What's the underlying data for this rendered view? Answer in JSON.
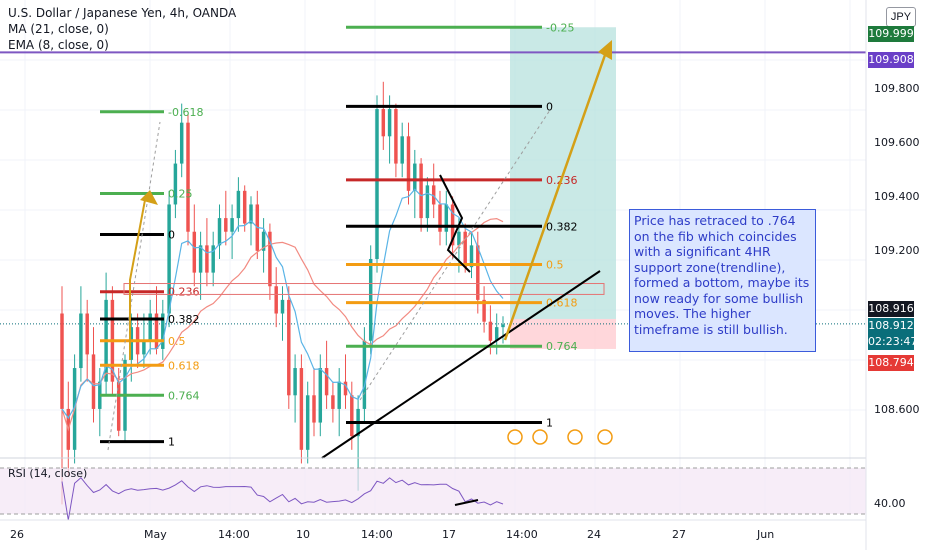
{
  "header": {
    "title": "U.S. Dollar / Japanese Yen, 4h, OANDA",
    "ma": "MA (21, close, 0)",
    "ema": "EMA (8, close, 0)",
    "currency": "JPY"
  },
  "rsi": {
    "label": "RSI (14, close)",
    "value_label": "40.00"
  },
  "note": "Price has retraced to .764 on the fib which coincides with a significant 4HR support zone(trendline), formed a bottom, maybe its now ready for some bullish moves. The higher timeframe is still bullish.",
  "price_tags": [
    {
      "text": "109.999",
      "color": "#1e7a3c"
    },
    {
      "text": "109.908",
      "color": "#6a3fc7"
    },
    {
      "text": "108.916",
      "color": "#131722"
    },
    {
      "text": "108.912",
      "color": "#0a6e7a"
    },
    {
      "text": "02:23:47",
      "color": "#0a6e7a"
    },
    {
      "text": "108.794",
      "color": "#e53935"
    }
  ],
  "colors": {
    "up": "#26a69a",
    "down": "#ef5350",
    "fib_green": "#4caf50",
    "fib_orange": "#f39c12",
    "fib_red": "#c62828",
    "fib_black": "#000000",
    "ma": "#f28b82",
    "ema": "#5ab4e6",
    "purple": "#7e57c2",
    "arrow": "#d4a017",
    "target_zone": "#b2dfdb",
    "stop_zone": "#ffcdd2"
  },
  "chart_data": {
    "type": "candlestick",
    "title": "U.S. Dollar / Japanese Yen, 4h, OANDA",
    "y_axis_ticks": [
      "109.800",
      "109.600",
      "109.400",
      "109.200",
      "108.600"
    ],
    "ylim": [
      108.42,
      110.1
    ],
    "x_axis_ticks": [
      "26",
      "May",
      "14:00",
      "10",
      "14:00",
      "17",
      "14:00",
      "24",
      "27",
      "Jun"
    ],
    "horizontal_lines": [
      {
        "price": 109.908,
        "color": "purple"
      }
    ],
    "fib_left": [
      {
        "level": "-0.618",
        "price": 109.69
      },
      {
        "level": "0.25",
        "price": 109.39
      },
      {
        "level": "0",
        "price": 109.24
      },
      {
        "level": "0.236",
        "price": 109.03
      },
      {
        "level": "0.382",
        "price": 108.93
      },
      {
        "level": "0.5",
        "price": 108.85
      },
      {
        "level": "0.618",
        "price": 108.76
      },
      {
        "level": "0.764",
        "price": 108.65
      },
      {
        "level": "1",
        "price": 108.48
      }
    ],
    "fib_right": [
      {
        "level": "-0.25",
        "price": 110.0
      },
      {
        "level": "0",
        "price": 109.71
      },
      {
        "level": "0.236",
        "price": 109.44
      },
      {
        "level": "0.382",
        "price": 109.27
      },
      {
        "level": "0.5",
        "price": 109.13
      },
      {
        "level": "0.618",
        "price": 108.99
      },
      {
        "level": "0.764",
        "price": 108.83
      },
      {
        "level": "1",
        "price": 108.55
      }
    ],
    "candles": [
      [
        108.95,
        109.05,
        108.25,
        108.6
      ],
      [
        108.6,
        108.7,
        108.35,
        108.45
      ],
      [
        108.45,
        108.8,
        108.4,
        108.75
      ],
      [
        108.75,
        109.05,
        108.7,
        108.95
      ],
      [
        108.95,
        109.0,
        108.7,
        108.8
      ],
      [
        108.8,
        108.9,
        108.55,
        108.6
      ],
      [
        108.6,
        108.75,
        108.5,
        108.7
      ],
      [
        108.7,
        109.1,
        108.65,
        109.0
      ],
      [
        109.0,
        109.05,
        108.65,
        108.7
      ],
      [
        108.7,
        108.75,
        108.5,
        108.52
      ],
      [
        108.52,
        108.8,
        108.48,
        108.78
      ],
      [
        108.78,
        108.95,
        108.7,
        108.9
      ],
      [
        108.9,
        108.95,
        108.75,
        108.8
      ],
      [
        108.8,
        108.95,
        108.75,
        108.85
      ],
      [
        108.85,
        109.0,
        108.8,
        108.95
      ],
      [
        108.95,
        109.05,
        108.8,
        108.82
      ],
      [
        108.82,
        109.0,
        108.78,
        108.95
      ],
      [
        108.95,
        109.4,
        108.9,
        109.35
      ],
      [
        109.35,
        109.55,
        109.3,
        109.5
      ],
      [
        109.5,
        109.72,
        109.45,
        109.65
      ],
      [
        109.65,
        109.68,
        109.2,
        109.25
      ],
      [
        109.25,
        109.35,
        109.05,
        109.1
      ],
      [
        109.1,
        109.25,
        109.0,
        109.2
      ],
      [
        109.2,
        109.3,
        109.05,
        109.1
      ],
      [
        109.1,
        109.25,
        109.05,
        109.2
      ],
      [
        109.2,
        109.35,
        109.15,
        109.3
      ],
      [
        109.3,
        109.4,
        109.2,
        109.25
      ],
      [
        109.25,
        109.35,
        109.15,
        109.3
      ],
      [
        109.3,
        109.45,
        109.25,
        109.4
      ],
      [
        109.4,
        109.42,
        109.25,
        109.28
      ],
      [
        109.28,
        109.38,
        109.2,
        109.35
      ],
      [
        109.35,
        109.4,
        109.15,
        109.18
      ],
      [
        109.18,
        109.3,
        109.1,
        109.25
      ],
      [
        109.25,
        109.28,
        109.0,
        109.05
      ],
      [
        109.05,
        109.12,
        108.9,
        108.95
      ],
      [
        108.95,
        109.05,
        108.85,
        109.0
      ],
      [
        109.0,
        109.05,
        108.6,
        108.65
      ],
      [
        108.65,
        108.8,
        108.55,
        108.75
      ],
      [
        108.75,
        108.8,
        108.4,
        108.45
      ],
      [
        108.45,
        108.7,
        108.4,
        108.65
      ],
      [
        108.65,
        108.75,
        108.5,
        108.55
      ],
      [
        108.55,
        108.8,
        108.5,
        108.75
      ],
      [
        108.75,
        108.85,
        108.6,
        108.65
      ],
      [
        108.65,
        108.7,
        108.55,
        108.6
      ],
      [
        108.6,
        108.75,
        108.5,
        108.7
      ],
      [
        108.7,
        108.8,
        108.6,
        108.65
      ],
      [
        108.65,
        108.7,
        108.45,
        108.5
      ],
      [
        108.5,
        108.65,
        108.3,
        108.6
      ],
      [
        108.6,
        108.9,
        108.55,
        108.85
      ],
      [
        108.85,
        109.2,
        108.8,
        109.15
      ],
      [
        109.15,
        109.75,
        109.1,
        109.7
      ],
      [
        109.7,
        109.8,
        109.55,
        109.6
      ],
      [
        109.6,
        109.75,
        109.5,
        109.7
      ],
      [
        109.7,
        109.72,
        109.45,
        109.5
      ],
      [
        109.5,
        109.65,
        109.45,
        109.6
      ],
      [
        109.6,
        109.65,
        109.35,
        109.4
      ],
      [
        109.4,
        109.55,
        109.3,
        109.5
      ],
      [
        109.5,
        109.52,
        109.25,
        109.3
      ],
      [
        109.3,
        109.45,
        109.25,
        109.42
      ],
      [
        109.42,
        109.5,
        109.3,
        109.35
      ],
      [
        109.35,
        109.4,
        109.2,
        109.25
      ],
      [
        109.25,
        109.4,
        109.2,
        109.35
      ],
      [
        109.35,
        109.38,
        109.15,
        109.2
      ],
      [
        109.2,
        109.3,
        109.1,
        109.25
      ],
      [
        109.25,
        109.28,
        109.1,
        109.12
      ],
      [
        109.12,
        109.25,
        109.08,
        109.2
      ],
      [
        109.2,
        109.25,
        108.95,
        109.0
      ],
      [
        109.0,
        109.05,
        108.88,
        108.92
      ],
      [
        108.92,
        108.98,
        108.8,
        108.85
      ],
      [
        108.85,
        108.95,
        108.8,
        108.9
      ],
      [
        108.9,
        108.94,
        108.84,
        108.91
      ]
    ]
  }
}
